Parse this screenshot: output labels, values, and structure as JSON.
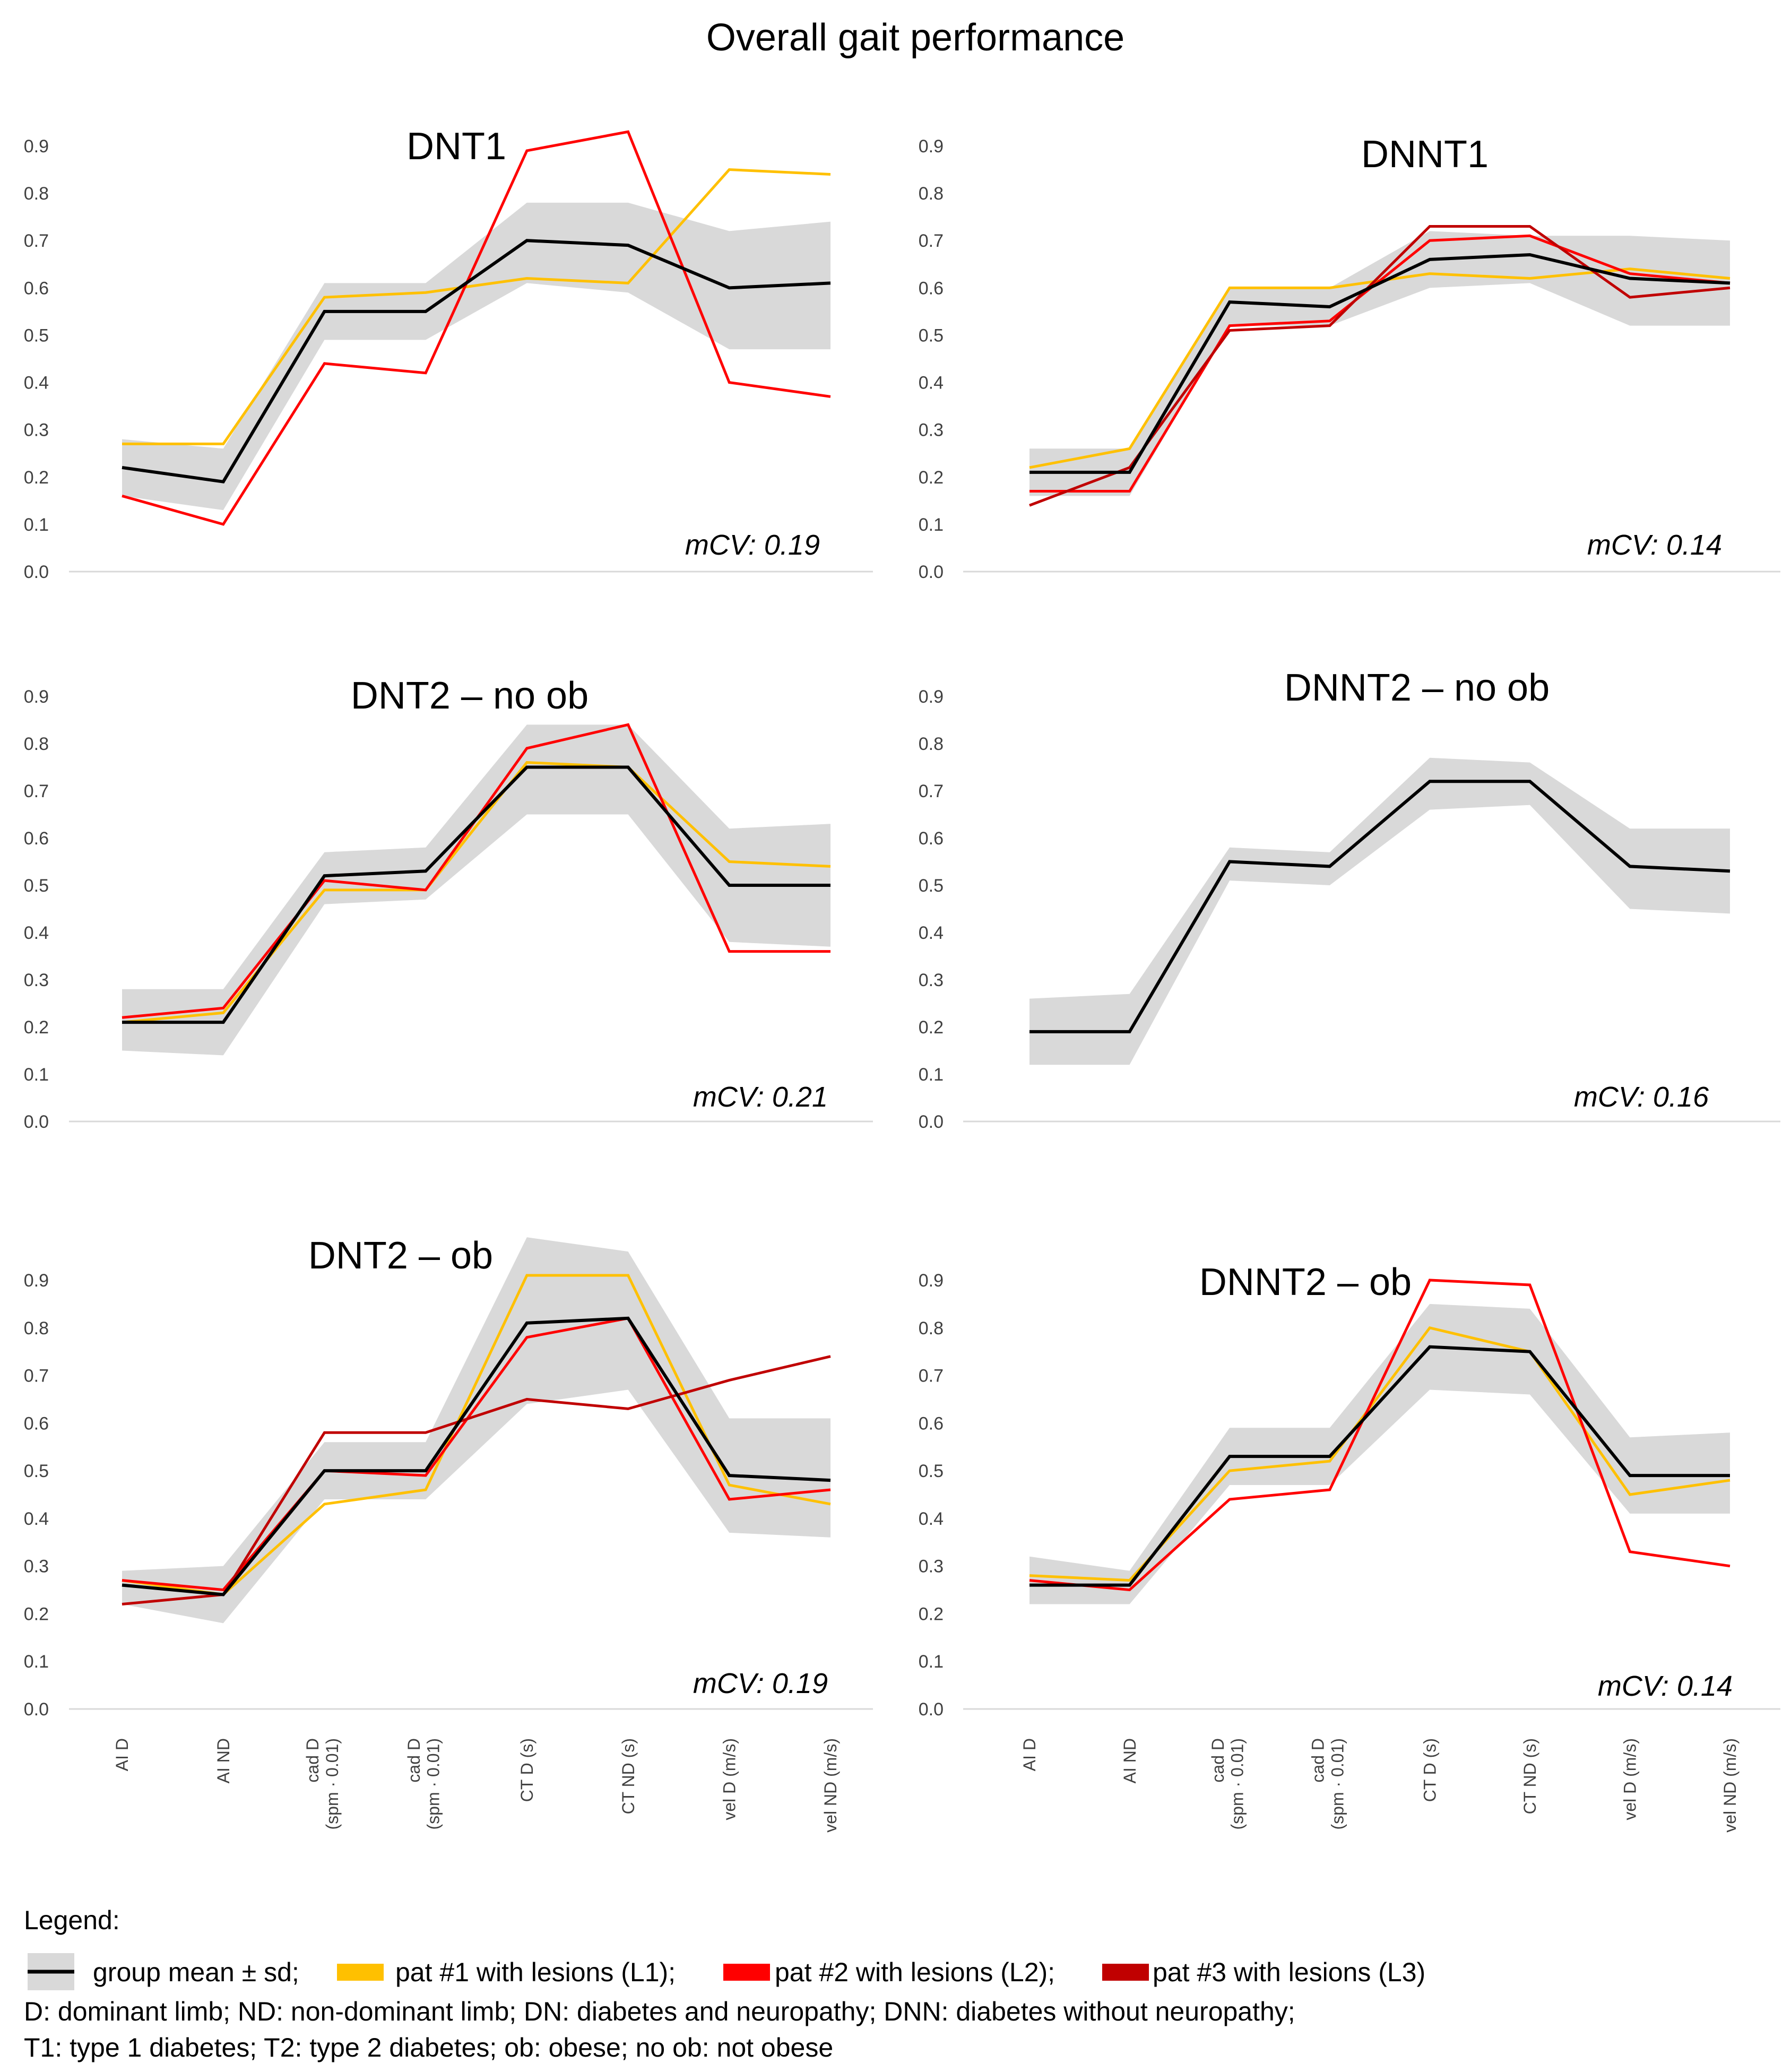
{
  "figure_title": "Overall gait performance",
  "legend": {
    "heading": "Legend:",
    "entries": [
      {
        "label": "group mean ± sd;",
        "color": "#000000",
        "band_color": "#d9d9d9"
      },
      {
        "label": "pat #1 with lesions (L1);",
        "color": "#ffc000"
      },
      {
        "label": "pat #2 with lesions (L2);",
        "color": "#ff0000"
      },
      {
        "label": "pat #3 with lesions (L3)",
        "color": "#c00000"
      }
    ],
    "notes": [
      "D: dominant limb; ND: non-dominant limb; DN: diabetes and neuropathy; DNN: diabetes without neuropathy;",
      "T1: type 1 diabetes; T2: type 2 diabetes; ob: obese; no ob: not obese"
    ]
  },
  "chart_data": [
    {
      "type": "line",
      "title": "DNT1",
      "mcv": "mCV: 0.19",
      "categories": [
        "AI D",
        "AI ND",
        "cad D (spm · 0.01)",
        "cad D (spm · 0.01)",
        "CT D (s)",
        "CT ND (s)",
        "vel D (m/s)",
        "vel ND (m/s)"
      ],
      "yticks": [
        "0.0",
        "0.1",
        "0.2",
        "0.3",
        "0.4",
        "0.5",
        "0.6",
        "0.7",
        "0.8",
        "0.9"
      ],
      "ylim": [
        0,
        0.9
      ],
      "band": {
        "upper": [
          0.28,
          0.26,
          0.61,
          0.61,
          0.78,
          0.78,
          0.72,
          0.74
        ],
        "lower": [
          0.16,
          0.13,
          0.49,
          0.49,
          0.61,
          0.59,
          0.47,
          0.47
        ]
      },
      "series": [
        {
          "name": "group mean",
          "color": "#000000",
          "values": [
            0.22,
            0.19,
            0.55,
            0.55,
            0.7,
            0.69,
            0.6,
            0.61
          ]
        },
        {
          "name": "pat #1 (L1)",
          "color": "#ffc000",
          "values": [
            0.27,
            0.27,
            0.58,
            0.59,
            0.62,
            0.61,
            0.85,
            0.84
          ]
        },
        {
          "name": "pat #2 (L2)",
          "color": "#ff0000",
          "values": [
            0.16,
            0.1,
            0.44,
            0.42,
            0.89,
            0.93,
            0.4,
            0.37
          ]
        }
      ]
    },
    {
      "type": "line",
      "title": "DNNT1",
      "mcv": "mCV: 0.14",
      "categories": [
        "AI D",
        "AI ND",
        "cad D (spm · 0.01)",
        "cad D (spm · 0.01)",
        "CT D (s)",
        "CT ND (s)",
        "vel D (m/s)",
        "vel ND (m/s)"
      ],
      "yticks": [
        "0.0",
        "0.1",
        "0.2",
        "0.3",
        "0.4",
        "0.5",
        "0.6",
        "0.7",
        "0.8",
        "0.9"
      ],
      "ylim": [
        0,
        0.9
      ],
      "band": {
        "upper": [
          0.26,
          0.26,
          0.6,
          0.6,
          0.72,
          0.71,
          0.71,
          0.7
        ],
        "lower": [
          0.16,
          0.16,
          0.52,
          0.52,
          0.6,
          0.61,
          0.52,
          0.52
        ]
      },
      "series": [
        {
          "name": "group mean",
          "color": "#000000",
          "values": [
            0.21,
            0.21,
            0.57,
            0.56,
            0.66,
            0.67,
            0.62,
            0.61
          ]
        },
        {
          "name": "pat #1 (L1)",
          "color": "#ffc000",
          "values": [
            0.22,
            0.26,
            0.6,
            0.6,
            0.63,
            0.62,
            0.64,
            0.62
          ]
        },
        {
          "name": "pat #2 (L2)",
          "color": "#ff0000",
          "values": [
            0.17,
            0.17,
            0.52,
            0.53,
            0.7,
            0.71,
            0.63,
            0.61
          ]
        },
        {
          "name": "pat #3 (L3)",
          "color": "#c00000",
          "values": [
            0.14,
            0.22,
            0.51,
            0.52,
            0.73,
            0.73,
            0.58,
            0.6
          ]
        }
      ]
    },
    {
      "type": "line",
      "title": "DNT2 – no ob",
      "mcv": "mCV: 0.21",
      "categories": [
        "AI D",
        "AI ND",
        "cad D (spm · 0.01)",
        "cad D (spm · 0.01)",
        "CT D (s)",
        "CT ND (s)",
        "vel D (m/s)",
        "vel ND (m/s)"
      ],
      "yticks": [
        "0.0",
        "0.1",
        "0.2",
        "0.3",
        "0.4",
        "0.5",
        "0.6",
        "0.7",
        "0.8",
        "0.9"
      ],
      "ylim": [
        0,
        0.9
      ],
      "band": {
        "upper": [
          0.28,
          0.28,
          0.57,
          0.58,
          0.84,
          0.84,
          0.62,
          0.63
        ],
        "lower": [
          0.15,
          0.14,
          0.46,
          0.47,
          0.65,
          0.65,
          0.38,
          0.37
        ]
      },
      "series": [
        {
          "name": "group mean",
          "color": "#000000",
          "values": [
            0.21,
            0.21,
            0.52,
            0.53,
            0.75,
            0.75,
            0.5,
            0.5
          ]
        },
        {
          "name": "pat #1 (L1)",
          "color": "#ffc000",
          "values": [
            0.21,
            0.23,
            0.49,
            0.49,
            0.76,
            0.75,
            0.55,
            0.54
          ]
        },
        {
          "name": "pat #2 (L2)",
          "color": "#ff0000",
          "values": [
            0.22,
            0.24,
            0.51,
            0.49,
            0.79,
            0.84,
            0.36,
            0.36
          ]
        }
      ]
    },
    {
      "type": "line",
      "title": "DNNT2 – no ob",
      "mcv": "mCV: 0.16",
      "categories": [
        "AI D",
        "AI ND",
        "cad D (spm · 0.01)",
        "cad D (spm · 0.01)",
        "CT D (s)",
        "CT ND (s)",
        "vel D (m/s)",
        "vel ND (m/s)"
      ],
      "yticks": [
        "0.0",
        "0.1",
        "0.2",
        "0.3",
        "0.4",
        "0.5",
        "0.6",
        "0.7",
        "0.8",
        "0.9"
      ],
      "ylim": [
        0,
        0.9
      ],
      "band": {
        "upper": [
          0.26,
          0.27,
          0.58,
          0.57,
          0.77,
          0.76,
          0.62,
          0.62
        ],
        "lower": [
          0.12,
          0.12,
          0.51,
          0.5,
          0.66,
          0.67,
          0.45,
          0.44
        ]
      },
      "series": [
        {
          "name": "group mean",
          "color": "#000000",
          "values": [
            0.19,
            0.19,
            0.55,
            0.54,
            0.72,
            0.72,
            0.54,
            0.53
          ]
        }
      ]
    },
    {
      "type": "line",
      "title": "DNT2 – ob",
      "mcv": "mCV: 0.19",
      "categories": [
        "AI D",
        "AI ND",
        "cad D (spm · 0.01)",
        "cad D (spm · 0.01)",
        "CT D (s)",
        "CT ND (s)",
        "vel D (m/s)",
        "vel ND (m/s)"
      ],
      "yticks": [
        "0.0",
        "0.1",
        "0.2",
        "0.3",
        "0.4",
        "0.5",
        "0.6",
        "0.7",
        "0.8",
        "0.9"
      ],
      "ylim": [
        0,
        0.9
      ],
      "band": {
        "upper": [
          0.29,
          0.3,
          0.56,
          0.56,
          0.99,
          0.96,
          0.61,
          0.61
        ],
        "lower": [
          0.22,
          0.18,
          0.44,
          0.44,
          0.64,
          0.67,
          0.37,
          0.36
        ]
      },
      "series": [
        {
          "name": "group mean",
          "color": "#000000",
          "values": [
            0.26,
            0.24,
            0.5,
            0.5,
            0.81,
            0.82,
            0.49,
            0.48
          ]
        },
        {
          "name": "pat #1 (L1)",
          "color": "#ffc000",
          "values": [
            0.27,
            0.24,
            0.43,
            0.46,
            0.91,
            0.91,
            0.47,
            0.43
          ]
        },
        {
          "name": "pat #2 (L2)",
          "color": "#ff0000",
          "values": [
            0.27,
            0.25,
            0.5,
            0.49,
            0.78,
            0.82,
            0.44,
            0.46
          ]
        },
        {
          "name": "pat #3 (L3)",
          "color": "#c00000",
          "values": [
            0.22,
            0.24,
            0.58,
            0.58,
            0.65,
            0.63,
            0.69,
            0.74
          ]
        }
      ]
    },
    {
      "type": "line",
      "title": "DNNT2 – ob",
      "mcv": "mCV: 0.14",
      "categories": [
        "AI D",
        "AI ND",
        "cad D (spm · 0.01)",
        "cad D (spm · 0.01)",
        "CT D (s)",
        "CT ND (s)",
        "vel D (m/s)",
        "vel ND (m/s)"
      ],
      "yticks": [
        "0.0",
        "0.1",
        "0.2",
        "0.3",
        "0.4",
        "0.5",
        "0.6",
        "0.7",
        "0.8",
        "0.9"
      ],
      "ylim": [
        0,
        0.9
      ],
      "band": {
        "upper": [
          0.32,
          0.29,
          0.59,
          0.59,
          0.85,
          0.84,
          0.57,
          0.58
        ],
        "lower": [
          0.22,
          0.22,
          0.47,
          0.47,
          0.67,
          0.66,
          0.41,
          0.41
        ]
      },
      "series": [
        {
          "name": "group mean",
          "color": "#000000",
          "values": [
            0.26,
            0.26,
            0.53,
            0.53,
            0.76,
            0.75,
            0.49,
            0.49
          ]
        },
        {
          "name": "pat #1 (L1)",
          "color": "#ffc000",
          "values": [
            0.28,
            0.27,
            0.5,
            0.52,
            0.8,
            0.75,
            0.45,
            0.48
          ]
        },
        {
          "name": "pat #2 (L2)",
          "color": "#ff0000",
          "values": [
            0.27,
            0.25,
            0.44,
            0.46,
            0.9,
            0.89,
            0.33,
            0.3
          ]
        }
      ]
    }
  ]
}
